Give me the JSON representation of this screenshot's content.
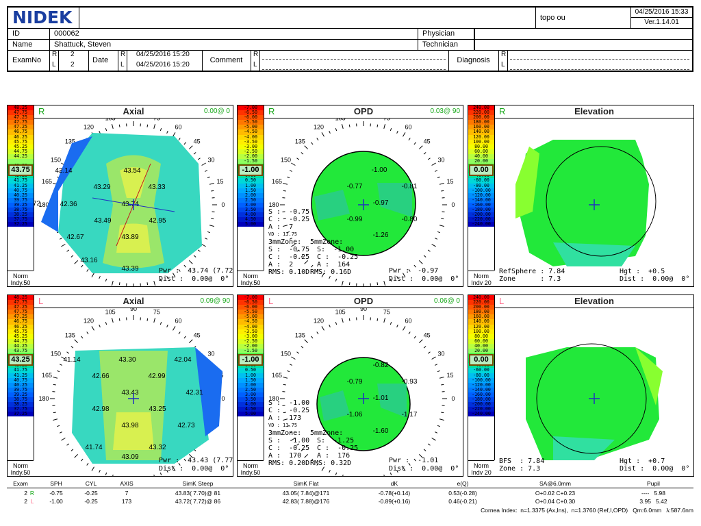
{
  "header": {
    "logo": "NIDEK",
    "file_name": "topo ou",
    "datetime": "04/25/2016 15:33",
    "version": "Ver.1.14.01",
    "id_label": "ID",
    "id_value": "000062",
    "name_label": "Name",
    "name_value": "Shattuck,  Steven",
    "physician_label": "Physician",
    "technician_label": "Technician",
    "examno_label": "ExamNo",
    "exam_r": "2",
    "exam_l": "2",
    "date_label": "Date",
    "date_r": "04/25/2016 15:20",
    "date_l": "04/25/2016 15:20",
    "comment_label": "Comment",
    "diagnosis_label": "Diagnosis",
    "r": "R",
    "l": "L"
  },
  "axis_ticks": [
    "90",
    "75",
    "60",
    "45",
    "30",
    "15",
    "0",
    "165",
    "150",
    "135",
    "120",
    "105",
    "180"
  ],
  "panels": {
    "r_axial": {
      "eye": "R",
      "title": "Axial",
      "reg": "0.00@ 0",
      "scale_sel": "43.75",
      "norm": "Norm",
      "indy": "Indy.50",
      "scale": [
        "48.25",
        "47.75",
        "47.25",
        "47.75",
        "47.25",
        "46.75",
        "46.25",
        "45.75",
        "45.25",
        "44.75",
        "44.25",
        "",
        "43.25",
        "42.75",
        "42.25",
        "41.75",
        "41.25",
        "40.75",
        "40.25",
        "39.75",
        "39.25",
        "38.75",
        "38.25",
        "37.75",
        "37.25"
      ],
      "values": [
        "42.14",
        "43.54",
        "43.29",
        "43.33",
        "42.36",
        "43.74",
        "43.49",
        "42.95",
        "42.67",
        "43.89",
        "43.16",
        "43.39"
      ],
      "edge": "72",
      "edge2": "180",
      "pwr": "Pwr :  43.74 (7.72)",
      "dist": "Dist :  0.00@  0°"
    },
    "r_opd": {
      "eye": "R",
      "title": "OPD",
      "reg": "0.03@ 90",
      "scale_sel": "-1.00",
      "norm": "Norm",
      "indy": "Indy.50",
      "scale": [
        "-7.00",
        "-6.50",
        "-6.00",
        "-5.50",
        "-5.00",
        "-4.50",
        "-4.00",
        "-3.50",
        "-3.00",
        "-2.50",
        "-2.00",
        "-1.50",
        "",
        "-0.50",
        "0.00",
        "0.50",
        "1.00",
        "1.50",
        "2.00",
        "2.50",
        "3.00",
        "3.50",
        "4.00",
        "4.50",
        "5.00"
      ],
      "values": [
        "-1.00",
        "-0.77",
        "-0.81",
        "-0.97",
        "-0.99",
        "-0.80",
        "-1.26"
      ],
      "s": "S :  -0.75",
      "c": "C :  -0.25",
      "a": "A :  7",
      "vd": "VD : 13.75",
      "zone3": "3mmZone:",
      "zone5": "5mmZone:",
      "s3": "S :  -0.75",
      "c3": "C :  -0.25",
      "a3": "A :  2",
      "rms3": "RMS: 0.10D",
      "s5": "S:  -1.00",
      "c5": "C :  -0.25",
      "a5": "A :  164",
      "rms5": "RMS: 0.16D",
      "pwr": "Pwr :  -0.97",
      "dist": "Dist :  0.00@  0°"
    },
    "r_elev": {
      "eye": "R",
      "title": "Elevation",
      "scale_sel": "0.00",
      "norm": "Norm",
      "indy": "Indv 20",
      "scale": [
        "240.00",
        "220.00",
        "200.00",
        "180.00",
        "160.00",
        "140.00",
        "120.00",
        "100.00",
        "80.00",
        "60.00",
        "40.00",
        "20.00",
        "",
        "-20.00",
        "-40.00",
        "-60.00",
        "-80.00",
        "-100.00",
        "-120.00",
        "-140.00",
        "-160.00",
        "-180.00",
        "-200.00",
        "-220.00",
        "-240.00"
      ],
      "ref": "RefSphere : 7.84",
      "zone": "Zone      : 7.3",
      "hgt": "Hgt :  +0.5",
      "dist": "Dist :  0.00@  0°"
    },
    "l_axial": {
      "eye": "L",
      "title": "Axial",
      "reg": "0.09@ 90",
      "scale_sel": "43.25",
      "norm": "Norm",
      "indy": "Indy.50",
      "scale": [
        "48.25",
        "47.75",
        "47.25",
        "47.75",
        "47.25",
        "46.75",
        "46.25",
        "45.75",
        "45.25",
        "44.75",
        "44.25",
        "43.75",
        "",
        "42.75",
        "42.25",
        "41.75",
        "41.25",
        "40.75",
        "40.25",
        "39.75",
        "39.25",
        "38.75",
        "38.25",
        "37.75",
        "37.25"
      ],
      "values": [
        "41.14",
        "43.30",
        "42.04",
        "42.66",
        "42.99",
        "43.43",
        "42.31",
        "42.98",
        "43.25",
        "43.98",
        "42.73",
        "41.74",
        "43.32",
        "43.09"
      ],
      "pwr": "Pwr :  43.43 (7.77)",
      "dist": "Dist :  0.00@  0°"
    },
    "l_opd": {
      "eye": "L",
      "title": "OPD",
      "reg": "0.06@ 0",
      "scale_sel": "-1.00",
      "norm": "Norm",
      "indy": "Indy.50",
      "scale": [
        "-7.00",
        "-6.50",
        "-6.00",
        "-5.50",
        "-5.00",
        "-4.50",
        "-4.00",
        "-3.50",
        "-3.00",
        "-2.50",
        "-2.00",
        "-1.50",
        "",
        "-0.50",
        "0.00",
        "0.50",
        "1.00",
        "1.50",
        "2.00",
        "2.50",
        "3.00",
        "3.50",
        "4.00",
        "4.50",
        "5.00"
      ],
      "values": [
        "-0.82",
        "-0.79",
        "-0.93",
        "-1.01",
        "-1.06",
        "-1.17",
        "-1.60"
      ],
      "s": "S :  -1.00",
      "c": "C :  -0.25",
      "a": "A :  173",
      "vd": "VD : 13.75",
      "zone3": "3mmZone:",
      "zone5": "5mmZone:",
      "s3": "S :  -1.00",
      "c3": "C :  -0.25",
      "a3": "A :  170",
      "rms3": "RMS: 0.20D",
      "s5": "S:  -1.25",
      "c5": "C :  -0.25",
      "a5": "A :  176",
      "rms5": "RMS: 0.32D",
      "pwr": "Pwr :  -1.01",
      "dist": "Dist :  0.00@  0°"
    },
    "l_elev": {
      "eye": "L",
      "title": "Elevation",
      "scale_sel": "0.00",
      "norm": "Norm",
      "indy": "Indv 20",
      "scale": [
        "240.00",
        "220.00",
        "200.00",
        "180.00",
        "160.00",
        "140.00",
        "120.00",
        "100.00",
        "80.00",
        "60.00",
        "40.00",
        "20.00",
        "",
        "-20.00",
        "-40.00",
        "-60.00",
        "-80.00",
        "-100.00",
        "-120.00",
        "-140.00",
        "-160.00",
        "-180.00",
        "-200.00",
        "-220.00",
        "-240.00"
      ],
      "ref": "BFS  : 7.84",
      "zone": "Zone : 7.3",
      "hgt": "Hgt :  +0.7",
      "dist": "Dist :  0.00@  0°"
    }
  },
  "summary": {
    "headers": [
      "Exam",
      "SPH",
      "CYL",
      "AXIS",
      "SimK Steep",
      "SimK Flat",
      "dK",
      "e(Q)",
      "SA@6.0mm",
      "Pupil"
    ],
    "row_r": [
      "2",
      "R",
      "-0.75",
      "-0.25",
      "7",
      "43.83( 7.70)@ 81",
      "43.05( 7.84)@171",
      "-0.78(+0.14)",
      "0.53(-0.28)",
      "O+0.02  C+0.23",
      "----   5.98"
    ],
    "row_l": [
      "2",
      "L",
      "-1.00",
      "-0.25",
      "173",
      "43.72( 7.72)@ 86",
      "42.83( 7.88)@176",
      "-0.89(+0.16)",
      "0.46(-0.21)",
      "O+0.04  C+0.30",
      "3.95   5.42"
    ],
    "footer": "Cornea Index:  n=1.3375 (Ax,Ins),  n=1.3760 (Ref,I,OPD)   Qm:6.0mm   λ:587.6nm"
  },
  "colors": {
    "scale": [
      "#ff0000",
      "#ff3300",
      "#ff5500",
      "#ff7700",
      "#ff9900",
      "#ffbb00",
      "#ffd800",
      "#ffee00",
      "#f5ff00",
      "#d8ff20",
      "#b8ff40",
      "#90ff60",
      "#30ee40",
      "#00e85a",
      "#00e0a0",
      "#00d8d8",
      "#00c0f0",
      "#00a8ff",
      "#0090ff",
      "#0078ff",
      "#0060ff",
      "#0048ee",
      "#0030dd",
      "#0018cc",
      "#0000bb"
    ],
    "logo": "#1a3ea0",
    "reg": "#18a81a",
    "eye_r": "#18a81a",
    "eye_l": "#ff6a8a"
  }
}
